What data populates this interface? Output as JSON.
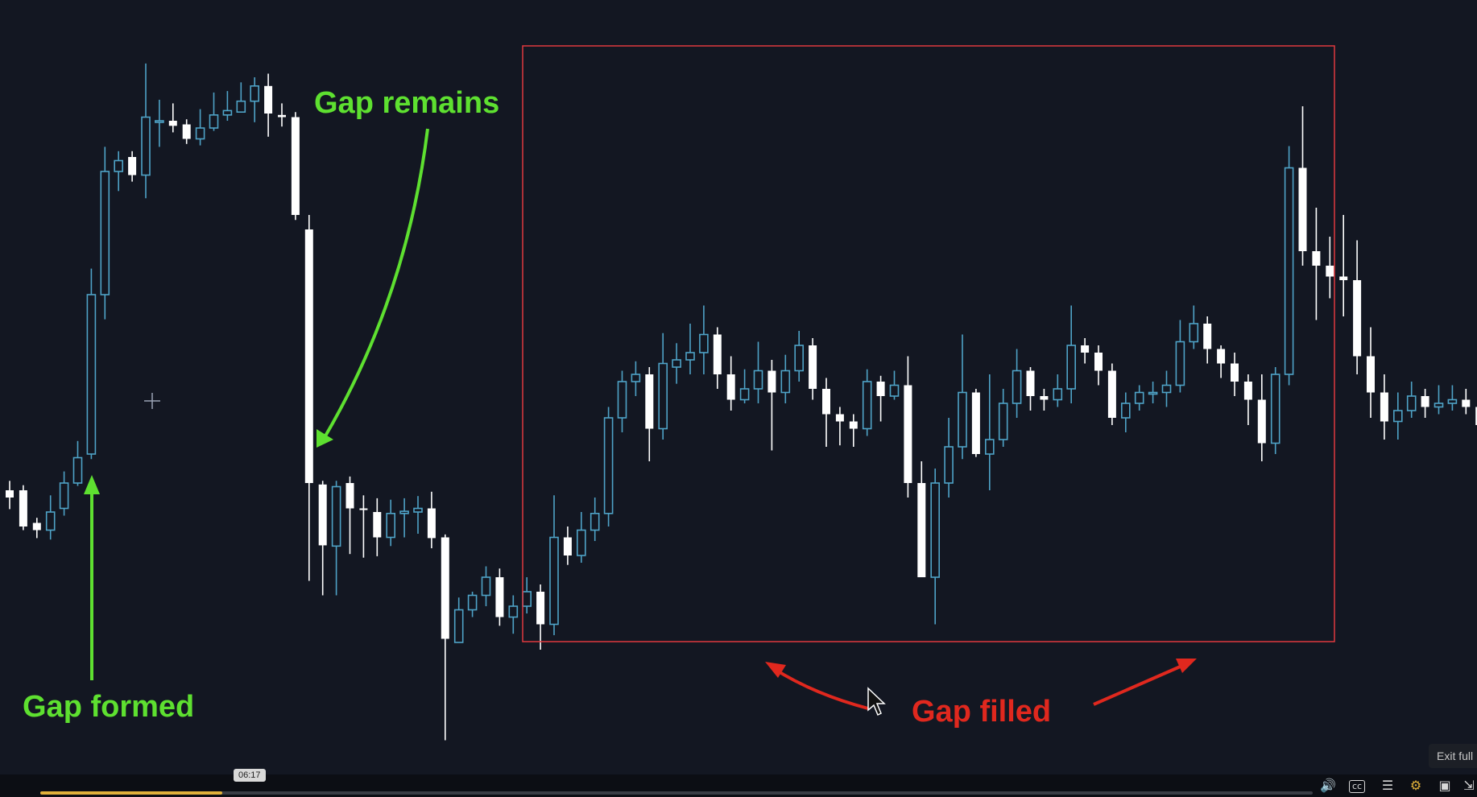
{
  "chart_data": {
    "type": "candlestick",
    "title": "",
    "xlabel": "",
    "ylabel": "",
    "ylim": [
      0,
      100
    ],
    "grid": false,
    "colors": {
      "up": "#4fa3c7",
      "down": "#ffffff",
      "background": "#131722"
    },
    "candles": [
      [
        39.0,
        38.0,
        40.3,
        36.4
      ],
      [
        39.0,
        34.0,
        39.7,
        33.5
      ],
      [
        34.5,
        33.5,
        35.2,
        32.4
      ],
      [
        33.5,
        36.0,
        38.3,
        32.2
      ],
      [
        36.5,
        40.0,
        41.6,
        35.5
      ],
      [
        40.0,
        43.5,
        45.8,
        39.6
      ],
      [
        44.0,
        66.0,
        69.6,
        43.3
      ],
      [
        66.0,
        83.0,
        86.4,
        62.6
      ],
      [
        83.0,
        84.5,
        85.8,
        80.3
      ],
      [
        85.0,
        82.5,
        85.8,
        81.6
      ],
      [
        82.5,
        90.5,
        97.9,
        79.3
      ],
      [
        90.0,
        90.0,
        92.9,
        86.4
      ],
      [
        90.0,
        89.3,
        92.4,
        88.4
      ],
      [
        89.5,
        87.5,
        90.2,
        86.8
      ],
      [
        87.5,
        89.0,
        91.6,
        86.6
      ],
      [
        89.0,
        90.8,
        93.9,
        88.6
      ],
      [
        90.8,
        91.4,
        94.1,
        90.0
      ],
      [
        91.2,
        92.7,
        95.3,
        91.6
      ],
      [
        92.7,
        94.8,
        96.0,
        89.8
      ],
      [
        94.8,
        91.0,
        96.5,
        87.8
      ],
      [
        90.8,
        90.5,
        92.4,
        89.2
      ],
      [
        90.5,
        77.0,
        91.2,
        76.3
      ],
      [
        75.0,
        40.0,
        77.0,
        26.5
      ],
      [
        39.8,
        31.4,
        40.3,
        24.5
      ],
      [
        31.3,
        39.5,
        40.3,
        24.5
      ],
      [
        40.0,
        36.5,
        40.9,
        30.2
      ],
      [
        36.5,
        36.3,
        38.3,
        29.7
      ],
      [
        36.0,
        32.5,
        37.9,
        29.9
      ],
      [
        32.5,
        35.8,
        37.7,
        31.3
      ],
      [
        35.8,
        36.1,
        37.9,
        32.5
      ],
      [
        36.0,
        36.5,
        38.2,
        33.0
      ],
      [
        36.5,
        32.4,
        38.8,
        31.0
      ],
      [
        32.5,
        18.5,
        32.9,
        4.5
      ],
      [
        18.0,
        22.5,
        24.2,
        18.0
      ],
      [
        22.5,
        24.5,
        25.0,
        21.5
      ],
      [
        24.5,
        27.0,
        28.5,
        23.0
      ],
      [
        27.0,
        21.5,
        28.2,
        20.3
      ],
      [
        21.5,
        23.0,
        24.5,
        19.2
      ],
      [
        23.0,
        25.0,
        27.0,
        22.0
      ],
      [
        25.0,
        20.5,
        26.0,
        17.0
      ],
      [
        20.5,
        32.5,
        38.3,
        19.0
      ],
      [
        32.5,
        30.0,
        34.0,
        28.7
      ],
      [
        30.0,
        33.5,
        36.0,
        29.0
      ],
      [
        33.5,
        35.8,
        38.0,
        32.0
      ],
      [
        35.8,
        49.0,
        50.5,
        34.0
      ],
      [
        49.0,
        54.0,
        55.5,
        47.0
      ],
      [
        54.0,
        55.0,
        56.8,
        52.0
      ],
      [
        55.0,
        47.5,
        56.0,
        43.0
      ],
      [
        47.5,
        56.5,
        60.7,
        46.0
      ],
      [
        56.0,
        57.0,
        59.3,
        53.7
      ],
      [
        57.0,
        58.0,
        62.0,
        55.0
      ],
      [
        58.0,
        60.5,
        64.5,
        55.0
      ],
      [
        60.5,
        55.0,
        61.5,
        53.0
      ],
      [
        55.0,
        51.5,
        57.5,
        50.0
      ],
      [
        51.5,
        53.0,
        55.7,
        51.0
      ],
      [
        53.0,
        55.5,
        59.5,
        51.0
      ],
      [
        55.5,
        52.5,
        57.0,
        44.5
      ],
      [
        52.5,
        55.5,
        57.7,
        51.0
      ],
      [
        55.5,
        59.0,
        61.0,
        54.0
      ],
      [
        59.0,
        53.0,
        60.0,
        51.5
      ],
      [
        53.0,
        49.5,
        54.5,
        45.0
      ],
      [
        49.5,
        48.5,
        50.5,
        45.2
      ],
      [
        48.5,
        47.5,
        49.5,
        45.0
      ],
      [
        47.5,
        54.0,
        55.7,
        46.5
      ],
      [
        54.0,
        52.0,
        54.8,
        48.5
      ],
      [
        52.0,
        53.5,
        55.5,
        51.5
      ],
      [
        53.5,
        40.0,
        57.5,
        38.0
      ],
      [
        40.0,
        27.0,
        43.0,
        27.0
      ],
      [
        27.0,
        40.0,
        42.0,
        20.5
      ],
      [
        40.0,
        45.0,
        49.0,
        38.0
      ],
      [
        45.0,
        52.5,
        60.5,
        43.3
      ],
      [
        52.5,
        44.0,
        53.0,
        43.6
      ],
      [
        44.0,
        46.0,
        55.0,
        39.0
      ],
      [
        46.0,
        51.0,
        53.0,
        45.0
      ],
      [
        51.0,
        55.5,
        58.5,
        49.0
      ],
      [
        55.5,
        52.0,
        56.0,
        50.0
      ],
      [
        52.0,
        51.5,
        53.0,
        50.0
      ],
      [
        51.5,
        53.0,
        55.0,
        50.5
      ],
      [
        53.0,
        59.0,
        64.5,
        51.0
      ],
      [
        59.0,
        58.0,
        60.0,
        56.5
      ],
      [
        58.0,
        55.5,
        59.0,
        53.5
      ],
      [
        55.5,
        49.0,
        56.5,
        48.0
      ],
      [
        49.0,
        51.0,
        52.5,
        47.0
      ],
      [
        51.0,
        52.5,
        53.5,
        50.0
      ],
      [
        52.5,
        52.5,
        54.0,
        51.0
      ],
      [
        52.5,
        53.5,
        55.5,
        50.5
      ],
      [
        53.5,
        59.5,
        62.5,
        52.5
      ],
      [
        59.5,
        62.0,
        64.5,
        58.5
      ],
      [
        62.0,
        58.5,
        63.0,
        56.5
      ],
      [
        58.5,
        56.5,
        59.0,
        54.5
      ],
      [
        56.5,
        54.0,
        58.0,
        52.0
      ],
      [
        54.0,
        51.5,
        55.0,
        48.0
      ],
      [
        51.5,
        45.5,
        55.0,
        43.0
      ],
      [
        45.5,
        55.0,
        56.0,
        44.0
      ],
      [
        55.0,
        83.5,
        86.5,
        53.5
      ],
      [
        83.5,
        72.0,
        92.0,
        70.0
      ],
      [
        72.0,
        70.0,
        78.0,
        62.5
      ],
      [
        70.0,
        68.5,
        74.0,
        65.5
      ],
      [
        68.5,
        68.0,
        77.0,
        63.0
      ],
      [
        68.0,
        57.5,
        73.5,
        55.0
      ],
      [
        57.5,
        52.5,
        61.5,
        49.0
      ],
      [
        52.5,
        48.5,
        55.0,
        46.0
      ],
      [
        48.5,
        50.0,
        52.5,
        46.0
      ],
      [
        50.0,
        52.0,
        54.0,
        49.0
      ],
      [
        52.0,
        50.5,
        53.0,
        49.0
      ],
      [
        50.5,
        51.0,
        53.5,
        49.5
      ],
      [
        51.0,
        51.5,
        53.5,
        50.0
      ],
      [
        51.5,
        50.5,
        53.0,
        49.5
      ],
      [
        50.5,
        48.0,
        51.0,
        46.5
      ],
      [
        48.0,
        46.5,
        49.5,
        45.0
      ]
    ]
  },
  "annotations": {
    "gap_remains": "Gap remains",
    "gap_formed": "Gap formed",
    "gap_filled": "Gap filled"
  },
  "player": {
    "time_tooltip": "06:17",
    "progress": 0.143,
    "exit_label": "Exit full"
  },
  "icons": {
    "crosshair": "crosshair-icon",
    "cursor": "mouse-cursor-icon",
    "volume": "volume-icon",
    "captions": "captions-icon",
    "settings": "gear-icon",
    "fullscreen": "exit-fullscreen-icon"
  }
}
